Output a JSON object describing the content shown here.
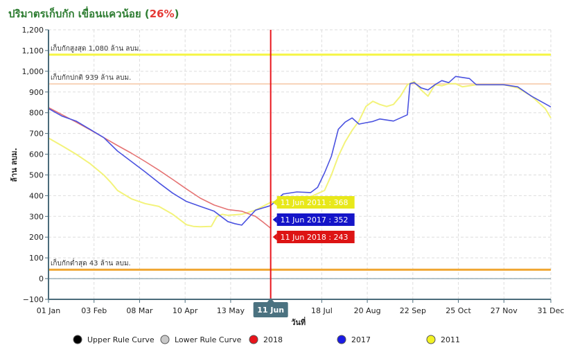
{
  "header": {
    "title_main": "ปริมาตรเก็บกัก เขื่อนแควน้อย (",
    "title_pct": "26%",
    "title_close": ")"
  },
  "colors": {
    "title": "#2e7d32",
    "pct": "#e53935",
    "s2018": "#e57373",
    "s2017": "#4a52e0",
    "s2011": "#f3f37a",
    "upper_line": "#f5f542",
    "normal_line": "#f7d3b8",
    "lower_line": "#f0a630",
    "cursor": "#e8141b"
  },
  "chart_data": {
    "type": "line",
    "xlabel": "วันที่",
    "ylabel": "ล้าน ลบม.",
    "ylim": [
      -100,
      1200
    ],
    "xlim": [
      0,
      364
    ],
    "yticks": [
      -100,
      0,
      100,
      200,
      300,
      400,
      500,
      600,
      700,
      800,
      900,
      1000,
      1100,
      1200
    ],
    "ytick_labels": [
      "−100",
      "0",
      "100",
      "200",
      "300",
      "400",
      "500",
      "600",
      "700",
      "800",
      "900",
      "1,000",
      "1,100",
      "1,200"
    ],
    "xticks": [
      {
        "day": 0,
        "label": "01 Jan"
      },
      {
        "day": 33,
        "label": "03 Feb"
      },
      {
        "day": 66,
        "label": "08 Mar"
      },
      {
        "day": 99,
        "label": "10 Apr"
      },
      {
        "day": 132,
        "label": "13 May"
      },
      {
        "day": 198,
        "label": "18 Jul"
      },
      {
        "day": 231,
        "label": "20 Aug"
      },
      {
        "day": 264,
        "label": "22 Sep"
      },
      {
        "day": 297,
        "label": "25 Oct"
      },
      {
        "day": 330,
        "label": "27 Nov"
      },
      {
        "day": 364,
        "label": "31 Dec"
      }
    ],
    "grid": true,
    "reference_lines": [
      {
        "name": "max",
        "value": 1080,
        "label": "เก็บกักสูงสุด 1,080 ล้าน ลบม."
      },
      {
        "name": "normal",
        "value": 939,
        "label": "เก็บกักปกติ 939 ล้าน ลบม."
      },
      {
        "name": "min",
        "value": 43,
        "label": "เก็บกักต่ำสุด 43 ล้าน ลบม."
      }
    ],
    "cursor": {
      "day": 161,
      "label": "11 Jun"
    },
    "tooltips": [
      {
        "series": "2011",
        "text": "11 Jun 2011 : 368"
      },
      {
        "series": "2017",
        "text": "11 Jun 2017 : 352"
      },
      {
        "series": "2018",
        "text": "11 Jun 2018 : 243"
      }
    ],
    "series": [
      {
        "name": "2018",
        "x": [
          0,
          10,
          20,
          30,
          40,
          50,
          60,
          70,
          80,
          90,
          100,
          110,
          120,
          130,
          140,
          150,
          155,
          161
        ],
        "values": [
          825,
          790,
          755,
          718,
          680,
          642,
          605,
          565,
          523,
          478,
          432,
          388,
          355,
          333,
          325,
          300,
          275,
          243
        ]
      },
      {
        "name": "2017",
        "x": [
          0,
          10,
          20,
          30,
          40,
          50,
          60,
          70,
          80,
          90,
          100,
          110,
          120,
          125,
          130,
          135,
          140,
          150,
          161,
          170,
          180,
          190,
          195,
          200,
          205,
          210,
          215,
          220,
          225,
          230,
          235,
          240,
          245,
          250,
          255,
          260,
          262,
          265,
          270,
          275,
          280,
          285,
          290,
          295,
          300,
          305,
          310,
          320,
          330,
          340,
          350,
          364
        ],
        "values": [
          820,
          783,
          760,
          720,
          680,
          615,
          565,
          515,
          462,
          412,
          372,
          348,
          325,
          300,
          275,
          265,
          258,
          330,
          352,
          408,
          418,
          415,
          440,
          510,
          590,
          720,
          755,
          775,
          745,
          752,
          758,
          770,
          765,
          760,
          775,
          790,
          940,
          945,
          920,
          910,
          935,
          955,
          945,
          975,
          970,
          965,
          935,
          935,
          935,
          925,
          880,
          828
        ]
      },
      {
        "name": "2011",
        "x": [
          0,
          10,
          20,
          30,
          40,
          45,
          50,
          60,
          70,
          80,
          90,
          100,
          105,
          110,
          118,
          122,
          126,
          130,
          140,
          150,
          161,
          165,
          170,
          180,
          190,
          200,
          205,
          210,
          215,
          220,
          225,
          230,
          235,
          240,
          245,
          250,
          255,
          260,
          265,
          270,
          275,
          280,
          285,
          290,
          295,
          300,
          310,
          320,
          330,
          340,
          350,
          360,
          364
        ],
        "values": [
          678,
          640,
          600,
          555,
          500,
          465,
          425,
          385,
          362,
          348,
          310,
          260,
          252,
          250,
          252,
          300,
          310,
          305,
          310,
          330,
          368,
          373,
          385,
          393,
          395,
          425,
          500,
          590,
          660,
          715,
          760,
          830,
          855,
          840,
          830,
          840,
          880,
          935,
          950,
          910,
          880,
          935,
          930,
          940,
          940,
          925,
          935,
          935,
          935,
          920,
          880,
          820,
          775
        ]
      },
      {
        "name": "Upper Rule Curve",
        "x": [],
        "values": []
      },
      {
        "name": "Lower Rule Curve",
        "x": [],
        "values": []
      }
    ],
    "legend": {
      "placement": "bottom",
      "items": [
        {
          "label": "Upper Rule Curve",
          "color": "#000000"
        },
        {
          "label": "Lower Rule Curve",
          "color": "#c8c8c8"
        },
        {
          "label": "2018",
          "color": "#e8141b"
        },
        {
          "label": "2017",
          "color": "#1a1ae6"
        },
        {
          "label": "2011",
          "color": "#f2f224"
        }
      ]
    }
  }
}
